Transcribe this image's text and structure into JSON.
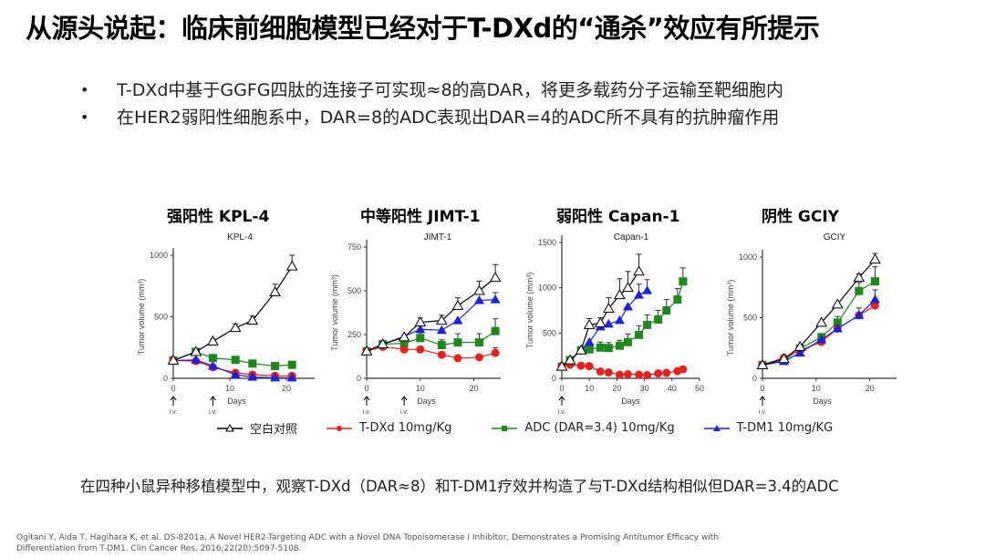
{
  "title": "从源头说起：临床前细胞模型已经对于T-DXd的“通杀”效应有所提示",
  "bullets": [
    "T-DXd中基于GGFG四肽的连接子可实现≈8的高DAR，将更多载药分子运输至靶细胞内",
    "在HER2弱阳性细胞系中，DAR=8的ADC表现出DAR=4的ADC所不具有的抗肿瘤作用"
  ],
  "bullet_symbol": "•",
  "panel_titles": [
    "强阳性 KPL-4",
    "中等阳性 JIMT-1",
    "弱阳性 Capan-1",
    "阴性 GCIY"
  ],
  "legend": [
    {
      "label": "空白对照",
      "color": "#000000",
      "marker": "open-triangle"
    },
    {
      "label": "T-DXd 10mg/Kg",
      "color": "#e8211d",
      "marker": "circle"
    },
    {
      "label": "ADC (DAR=3.4) 10mg/Kg",
      "color": "#1a8a1a",
      "marker": "square"
    },
    {
      "label": "T-DM1 10mg/KG",
      "color": "#1f1fe0",
      "marker": "triangle"
    }
  ],
  "summary": "在四种小鼠异种移植模型中，观察T-DXd（DAR≈8）和T-DM1疗效并构造了与T-DXd结构相似但DAR=3.4的ADC",
  "citation": [
    "Ogitani Y, Aida T, Hagihara K, et al. DS-8201a, A Novel HER2-Targeting ADC with a Novel DNA Topoisomerase I Inhibitor, Demonstrates a Promising Antitumor Efficacy with",
    "Differentiation from T-DM1. Clin Cancer Res. 2016;22(20):5097-5108."
  ],
  "chart_data": [
    {
      "type": "line",
      "title": "KPL-4",
      "xlabel": "Days",
      "ylabel": "Tumor volume (mm³)",
      "xlim": [
        0,
        25
      ],
      "ylim": [
        0,
        1000
      ],
      "xticks": [
        0,
        10,
        20
      ],
      "yticks": [
        0,
        500,
        1000
      ],
      "dosing_label": "i.v.",
      "dosing_days": [
        0,
        7
      ],
      "series": [
        {
          "name": "空白对照",
          "x": [
            0,
            4,
            7,
            11,
            14,
            18,
            21
          ],
          "y": [
            145,
            215,
            300,
            410,
            470,
            700,
            910
          ],
          "err": [
            0,
            20,
            20,
            30,
            35,
            65,
            90
          ]
        },
        {
          "name": "T-DXd 10mg/Kg",
          "x": [
            0,
            4,
            7,
            11,
            14,
            18,
            21
          ],
          "y": [
            145,
            140,
            90,
            45,
            30,
            20,
            20
          ],
          "err": [
            0,
            0,
            0,
            0,
            0,
            0,
            0
          ]
        },
        {
          "name": "ADC (DAR=3.4) 10mg/Kg",
          "x": [
            0,
            4,
            7,
            11,
            14,
            18,
            21
          ],
          "y": [
            145,
            215,
            165,
            150,
            120,
            100,
            110
          ],
          "err": [
            0,
            0,
            0,
            0,
            0,
            0,
            0
          ]
        },
        {
          "name": "T-DM1 10mg/KG",
          "x": [
            0,
            4,
            7,
            11,
            14,
            18,
            21
          ],
          "y": [
            145,
            150,
            100,
            30,
            10,
            5,
            5
          ],
          "err": [
            0,
            0,
            0,
            0,
            0,
            0,
            0
          ]
        }
      ]
    },
    {
      "type": "line",
      "title": "JIMT-1",
      "xlabel": "Days",
      "ylabel": "Tumor volume (mm³)",
      "xlim": [
        0,
        25
      ],
      "ylim": [
        0,
        750
      ],
      "xticks": [
        0,
        10,
        20
      ],
      "yticks": [
        0,
        250,
        500,
        750
      ],
      "dosing_label": "i.v.",
      "dosing_days": [
        0,
        7
      ],
      "series": [
        {
          "name": "空白对照",
          "x": [
            0,
            3,
            7,
            10,
            14,
            17,
            21,
            24
          ],
          "y": [
            155,
            195,
            235,
            320,
            330,
            415,
            500,
            575
          ],
          "err": [
            0,
            0,
            0,
            25,
            30,
            45,
            55,
            75
          ]
        },
        {
          "name": "T-DXd 10mg/Kg",
          "x": [
            0,
            3,
            7,
            10,
            14,
            17,
            21,
            24
          ],
          "y": [
            155,
            180,
            165,
            165,
            135,
            115,
            120,
            145
          ],
          "err": [
            0,
            0,
            0,
            0,
            0,
            0,
            0,
            30
          ]
        },
        {
          "name": "ADC (DAR=3.4) 10mg/Kg",
          "x": [
            0,
            3,
            7,
            10,
            14,
            17,
            21,
            24
          ],
          "y": [
            155,
            195,
            200,
            230,
            190,
            205,
            205,
            270
          ],
          "err": [
            0,
            0,
            0,
            30,
            30,
            50,
            50,
            70
          ]
        },
        {
          "name": "T-DM1 10mg/KG",
          "x": [
            0,
            3,
            7,
            10,
            14,
            17,
            21,
            24
          ],
          "y": [
            155,
            195,
            240,
            280,
            275,
            330,
            445,
            450
          ],
          "err": [
            0,
            0,
            0,
            0,
            0,
            0,
            0,
            40
          ]
        }
      ]
    },
    {
      "type": "line",
      "title": "Capan-1",
      "xlabel": "Days",
      "ylabel": "Tumor volume (mm³)",
      "xlim": [
        0,
        50
      ],
      "ylim": [
        0,
        1500
      ],
      "xticks": [
        0,
        10,
        20,
        30,
        40,
        50
      ],
      "yticks": [
        0,
        500,
        1000,
        1500
      ],
      "dosing_label": "i.v.",
      "dosing_days": [
        0
      ],
      "series": [
        {
          "name": "空白对照",
          "x": [
            0,
            3,
            7,
            10,
            14,
            17,
            21,
            24,
            28
          ],
          "y": [
            130,
            200,
            310,
            590,
            610,
            770,
            920,
            1000,
            1180
          ],
          "err": [
            0,
            0,
            0,
            70,
            60,
            120,
            180,
            180,
            190
          ]
        },
        {
          "name": "T-DXd 10mg/Kg",
          "x": [
            0,
            3,
            7,
            10,
            14,
            17,
            21,
            24,
            28,
            31,
            35,
            38,
            42,
            44
          ],
          "y": [
            130,
            150,
            140,
            135,
            75,
            65,
            40,
            45,
            40,
            35,
            55,
            60,
            80,
            100
          ],
          "err": [
            0,
            0,
            0,
            0,
            0,
            0,
            0,
            0,
            0,
            0,
            0,
            0,
            0,
            0
          ]
        },
        {
          "name": "ADC (DAR=3.4) 10mg/Kg",
          "x": [
            0,
            3,
            7,
            10,
            14,
            17,
            21,
            24,
            28,
            31,
            35,
            38,
            42,
            44
          ],
          "y": [
            130,
            200,
            310,
            320,
            340,
            335,
            360,
            400,
            480,
            590,
            650,
            750,
            870,
            1070
          ],
          "err": [
            0,
            0,
            0,
            0,
            60,
            60,
            60,
            90,
            100,
            110,
            100,
            120,
            120,
            150
          ]
        },
        {
          "name": "T-DM1 10mg/KG",
          "x": [
            0,
            3,
            7,
            10,
            14,
            17,
            21,
            24,
            28,
            31
          ],
          "y": [
            130,
            200,
            310,
            400,
            570,
            600,
            640,
            790,
            920,
            970
          ],
          "err": [
            0,
            0,
            0,
            0,
            0,
            0,
            0,
            0,
            120,
            120
          ]
        }
      ]
    },
    {
      "type": "line",
      "title": "GCIY",
      "xlabel": "Days",
      "ylabel": "Tumor volume (mm³)",
      "xlim": [
        0,
        25
      ],
      "ylim": [
        0,
        1000
      ],
      "xticks": [
        0,
        10,
        20
      ],
      "yticks": [
        0,
        500,
        1000
      ],
      "dosing_label": "i.v.",
      "dosing_days": [
        0
      ],
      "series": [
        {
          "name": "空白对照",
          "x": [
            0,
            4,
            7,
            11,
            14,
            18,
            21
          ],
          "y": [
            110,
            160,
            260,
            460,
            610,
            830,
            980
          ],
          "err": [
            0,
            0,
            0,
            0,
            0,
            30,
            50
          ]
        },
        {
          "name": "T-DXd 10mg/Kg",
          "x": [
            0,
            4,
            7,
            11,
            14,
            18,
            21
          ],
          "y": [
            110,
            170,
            230,
            300,
            410,
            520,
            600
          ],
          "err": [
            0,
            0,
            0,
            0,
            0,
            0,
            0
          ]
        },
        {
          "name": "ADC (DAR=3.4) 10mg/Kg",
          "x": [
            0,
            4,
            7,
            11,
            14,
            18,
            21
          ],
          "y": [
            110,
            145,
            245,
            340,
            460,
            720,
            800
          ],
          "err": [
            0,
            0,
            0,
            0,
            50,
            70,
            120
          ]
        },
        {
          "name": "T-DM1 10mg/KG",
          "x": [
            0,
            4,
            7,
            11,
            14,
            18,
            21
          ],
          "y": [
            110,
            140,
            210,
            320,
            410,
            520,
            650
          ],
          "err": [
            0,
            0,
            0,
            0,
            0,
            60,
            80
          ]
        }
      ]
    }
  ]
}
